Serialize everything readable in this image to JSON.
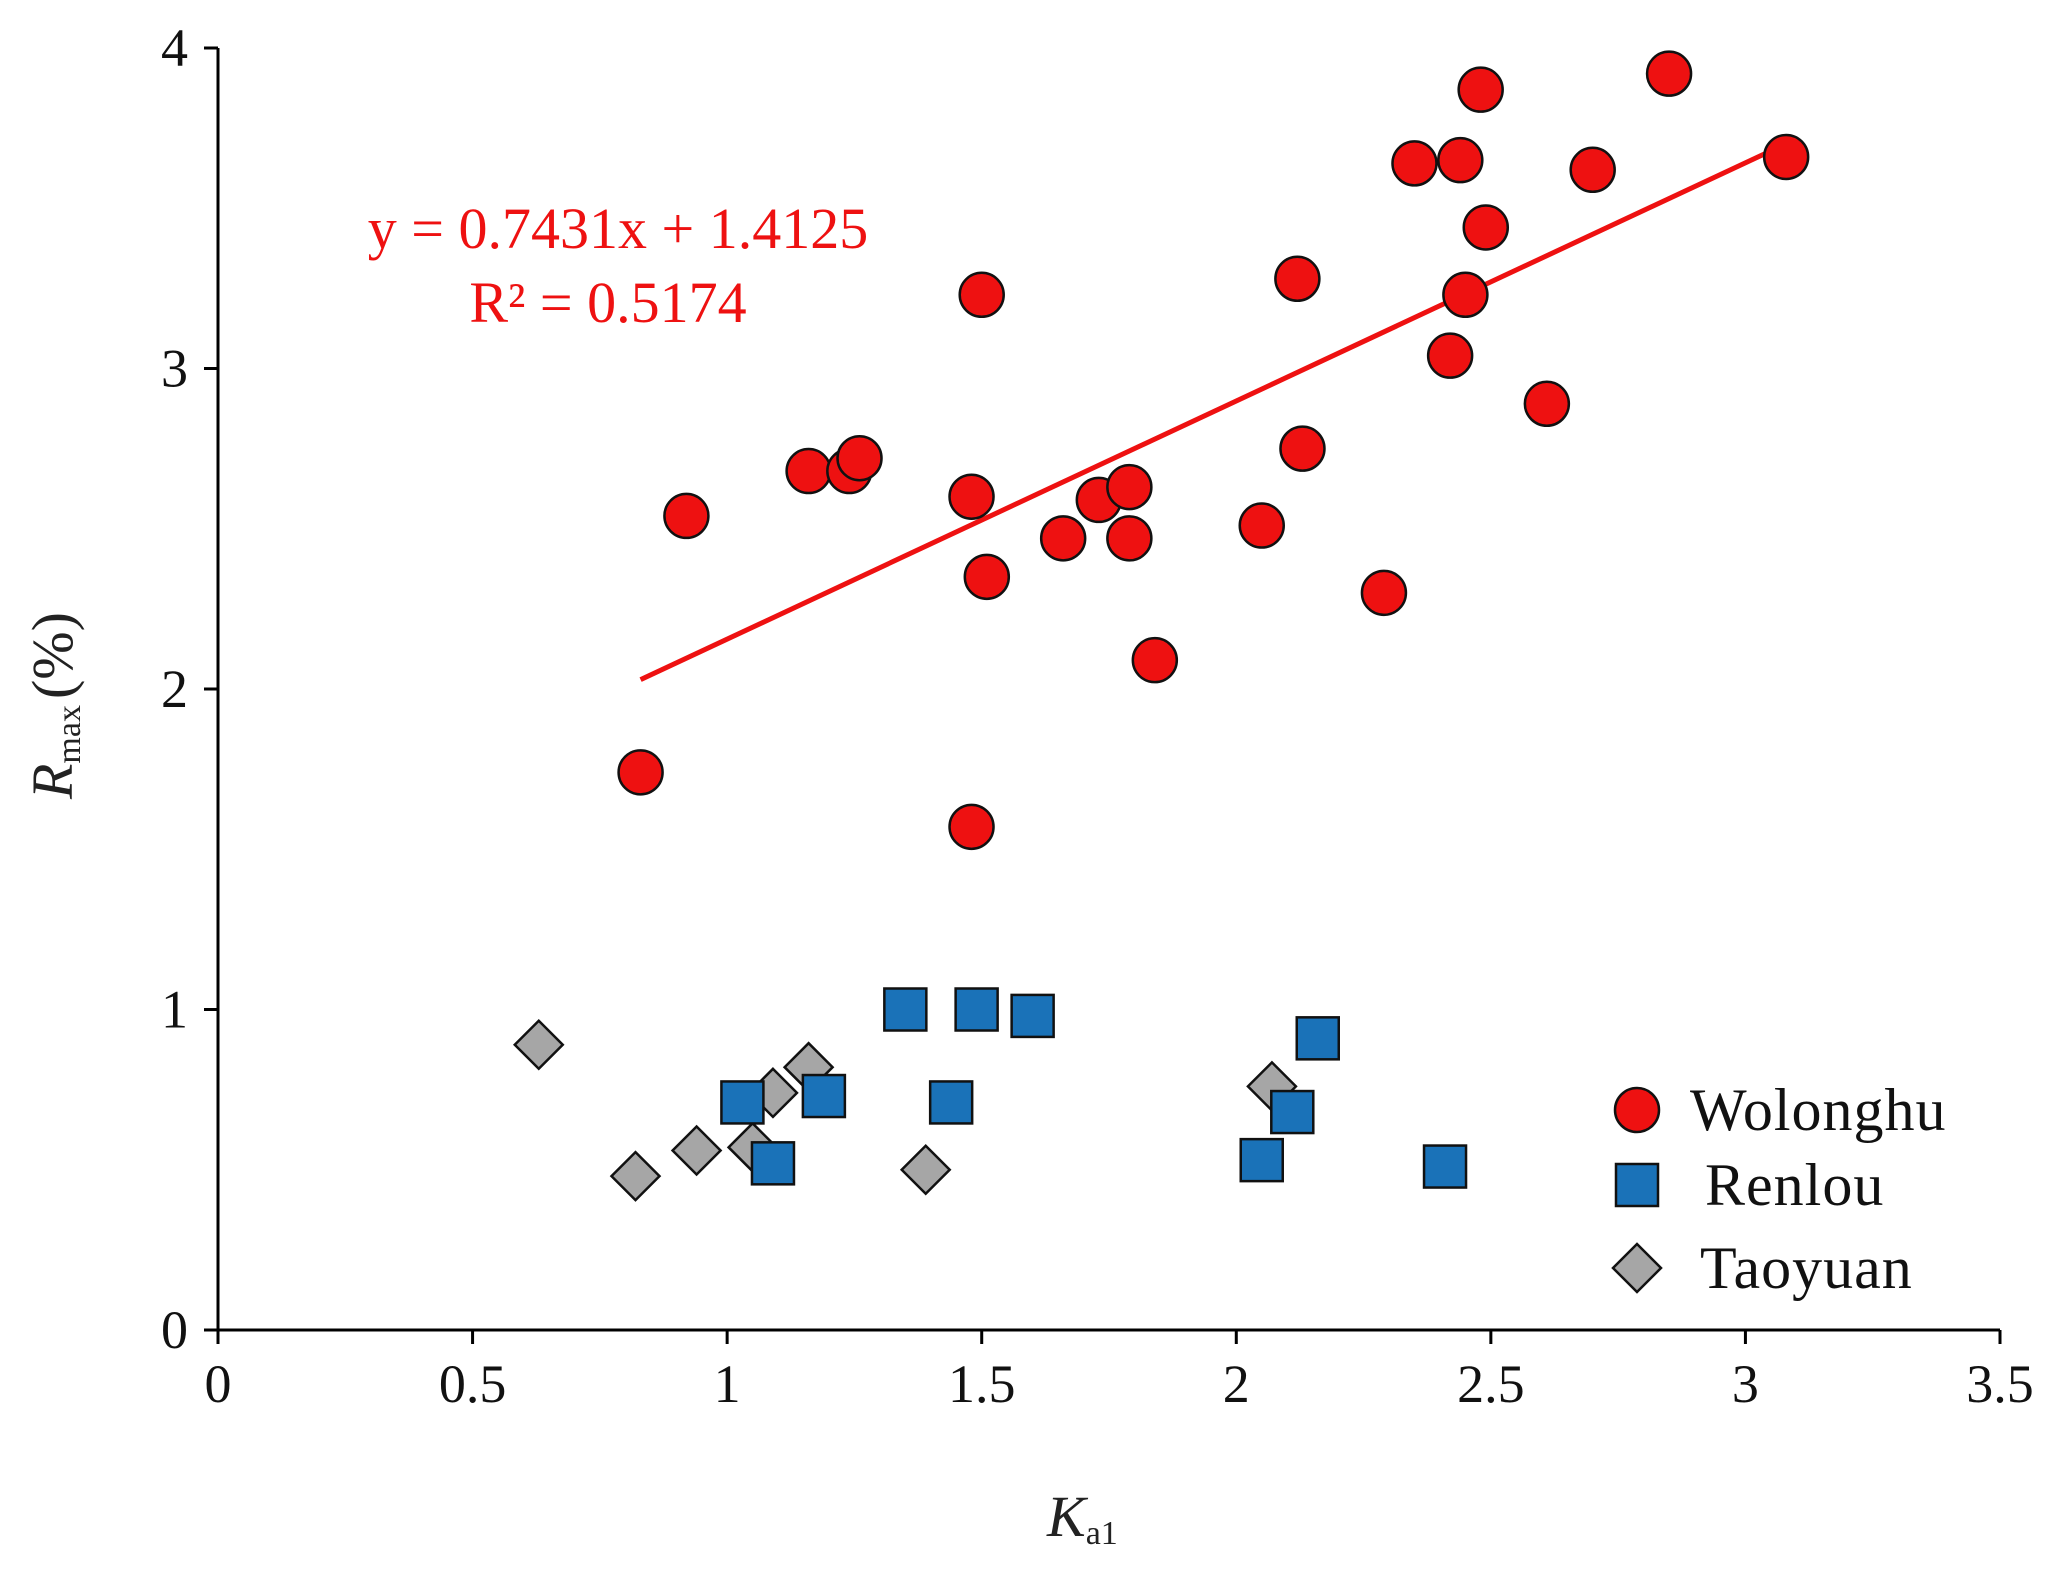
{
  "chart_data": {
    "type": "scatter",
    "title": "",
    "xlabel": {
      "main": "K",
      "sub": "a1"
    },
    "ylabel": {
      "main": "R",
      "sub": "max",
      "suffix": "(%)"
    },
    "xlim": [
      0,
      3.5
    ],
    "ylim": [
      0,
      4
    ],
    "xticks": [
      0,
      0.5,
      1,
      1.5,
      2,
      2.5,
      3,
      3.5
    ],
    "xtick_labels": [
      "0",
      "0.5",
      "1",
      "1.5",
      "2",
      "2.5",
      "3",
      "3.5"
    ],
    "yticks": [
      0,
      1,
      2,
      3,
      4
    ],
    "ytick_labels": [
      "0",
      "1",
      "2",
      "3",
      "4"
    ],
    "grid": false,
    "legend_position": "bottom-right",
    "series": [
      {
        "name": "Wolonghu",
        "marker": "circle",
        "color": "#ee1111",
        "x": [
          0.83,
          0.92,
          1.16,
          1.24,
          1.26,
          1.48,
          1.48,
          1.5,
          1.51,
          1.66,
          1.73,
          1.79,
          1.79,
          1.84,
          2.05,
          2.12,
          2.13,
          2.29,
          2.35,
          2.42,
          2.44,
          2.45,
          2.48,
          2.49,
          2.61,
          2.7,
          2.85,
          3.08
        ],
        "y": [
          1.74,
          2.54,
          2.68,
          2.68,
          2.72,
          1.57,
          2.6,
          3.23,
          2.35,
          2.47,
          2.59,
          2.47,
          2.63,
          2.09,
          2.51,
          3.28,
          2.75,
          2.3,
          3.64,
          3.04,
          3.65,
          3.23,
          3.87,
          3.44,
          2.89,
          3.62,
          3.92,
          3.66
        ]
      },
      {
        "name": "Renlou",
        "marker": "square",
        "color": "#1a72b8",
        "x": [
          1.03,
          1.09,
          1.19,
          1.35,
          1.44,
          1.49,
          1.6,
          2.05,
          2.11,
          2.16,
          2.41
        ],
        "y": [
          0.71,
          0.52,
          0.73,
          1.0,
          0.71,
          1.0,
          0.98,
          0.53,
          0.68,
          0.91,
          0.51
        ]
      },
      {
        "name": "Taoyuan",
        "marker": "diamond",
        "color": "#a6a6a6",
        "x": [
          0.63,
          0.82,
          0.94,
          1.05,
          1.09,
          1.16,
          1.39,
          2.07
        ],
        "y": [
          0.89,
          0.48,
          0.56,
          0.57,
          0.74,
          0.82,
          0.5,
          0.76
        ]
      }
    ],
    "trendline": {
      "series": "Wolonghu",
      "slope": 0.7431,
      "intercept": 1.4125,
      "x_range": [
        0.83,
        3.08
      ],
      "color": "#ee1111",
      "equation_label": "y = 0.7431x + 1.4125",
      "r2_label": "R² = 0.5174"
    }
  }
}
